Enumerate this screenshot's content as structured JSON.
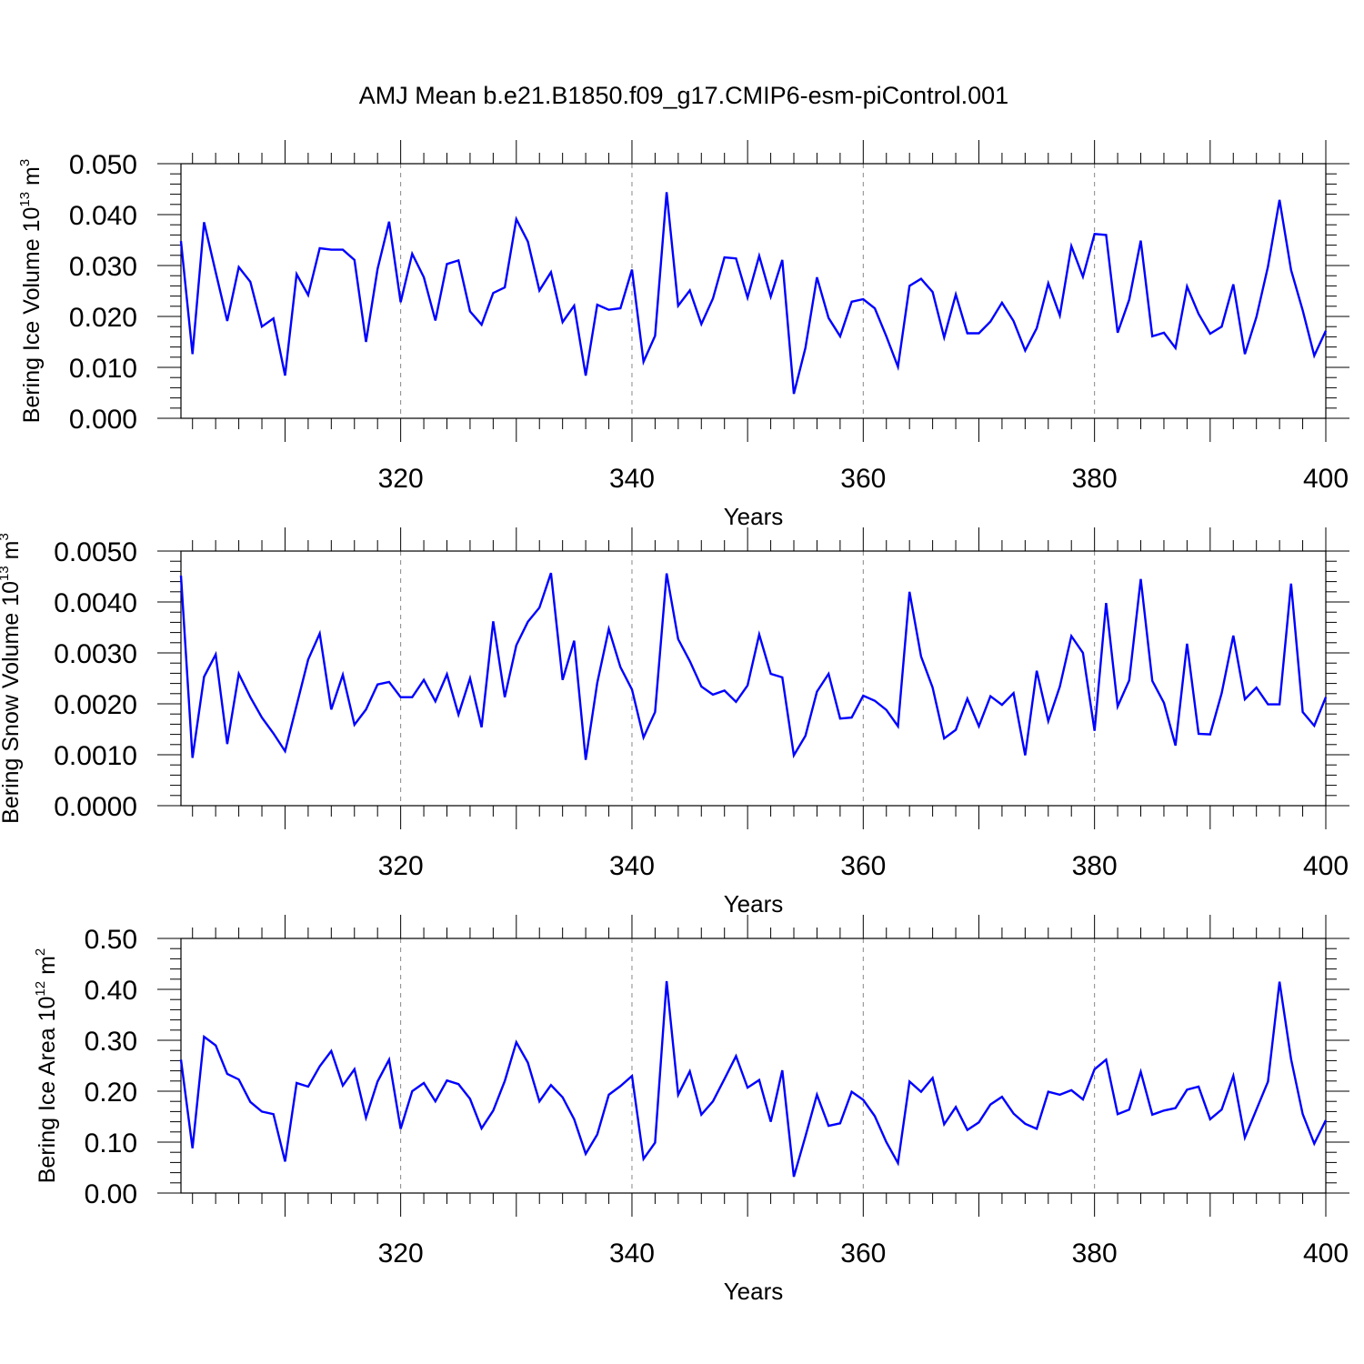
{
  "title": "AMJ Mean b.e21.B1850.f09_g17.CMIP6-esm-piControl.001",
  "chart_data": [
    {
      "type": "line",
      "xlabel": "Years",
      "ylabel": {
        "text": "Bering Ice Volume 10",
        "sup": "13",
        "unit": " m",
        "unit_sup": "3"
      },
      "xlim": [
        301,
        400
      ],
      "ylim": [
        0,
        0.05
      ],
      "xticks": [
        320,
        340,
        360,
        380,
        400
      ],
      "xtick_labels": [
        "320",
        "340",
        "360",
        "380",
        "400"
      ],
      "yticks": [
        0,
        0.01,
        0.02,
        0.03,
        0.04,
        0.05
      ],
      "ytick_labels": [
        "0.000",
        "0.010",
        "0.020",
        "0.030",
        "0.040",
        "0.050"
      ],
      "grid": "vertical dashed at major x ticks",
      "line_color": "#0000ff",
      "series": [
        {
          "x_start": 301,
          "values": [
            0.0348,
            0.0126,
            0.0385,
            0.0287,
            0.0191,
            0.0297,
            0.0268,
            0.018,
            0.0196,
            0.0084,
            0.0283,
            0.0242,
            0.0334,
            0.0331,
            0.0331,
            0.0311,
            0.015,
            0.0293,
            0.0386,
            0.0228,
            0.0323,
            0.0277,
            0.0192,
            0.0303,
            0.031,
            0.021,
            0.0184,
            0.0246,
            0.0257,
            0.0391,
            0.0347,
            0.0251,
            0.0287,
            0.0189,
            0.0221,
            0.0084,
            0.0223,
            0.0213,
            0.0216,
            0.0292,
            0.0111,
            0.0162,
            0.0444,
            0.0221,
            0.0251,
            0.0185,
            0.0235,
            0.0316,
            0.0314,
            0.0237,
            0.0319,
            0.0239,
            0.0311,
            0.0048,
            0.0138,
            0.0277,
            0.0197,
            0.0161,
            0.0229,
            0.0234,
            0.0216,
            0.0161,
            0.0101,
            0.026,
            0.0274,
            0.0248,
            0.0159,
            0.0243,
            0.0167,
            0.0167,
            0.019,
            0.0227,
            0.0191,
            0.0133,
            0.0177,
            0.0265,
            0.0202,
            0.0338,
            0.0278,
            0.0362,
            0.036,
            0.0168,
            0.0233,
            0.0349,
            0.0161,
            0.0168,
            0.0138,
            0.0259,
            0.0205,
            0.0166,
            0.018,
            0.0263,
            0.0126,
            0.0199,
            0.0298,
            0.0429,
            0.0291,
            0.0212,
            0.0123,
            0.0172
          ]
        }
      ]
    },
    {
      "type": "line",
      "xlabel": "Years",
      "ylabel": {
        "text": "Bering Snow Volume 10",
        "sup": "13",
        "unit": " m",
        "unit_sup": "3"
      },
      "xlim": [
        301,
        400
      ],
      "ylim": [
        0,
        0.005
      ],
      "xticks": [
        320,
        340,
        360,
        380,
        400
      ],
      "xtick_labels": [
        "320",
        "340",
        "360",
        "380",
        "400"
      ],
      "yticks": [
        0,
        0.001,
        0.002,
        0.003,
        0.004,
        0.005
      ],
      "ytick_labels": [
        "0.0000",
        "0.0010",
        "0.0020",
        "0.0030",
        "0.0040",
        "0.0050"
      ],
      "grid": "vertical dashed at major x ticks",
      "line_color": "#0000ff",
      "series": [
        {
          "x_start": 301,
          "values": [
            0.00452,
            0.00094,
            0.00253,
            0.00297,
            0.00121,
            0.00259,
            0.00213,
            0.00173,
            0.00142,
            0.00107,
            0.00197,
            0.00287,
            0.00338,
            0.00189,
            0.00257,
            0.00159,
            0.00189,
            0.00238,
            0.00243,
            0.00213,
            0.00213,
            0.00247,
            0.00205,
            0.00258,
            0.00179,
            0.0025,
            0.00154,
            0.00362,
            0.00213,
            0.00315,
            0.00361,
            0.00389,
            0.00457,
            0.00247,
            0.00324,
            0.0009,
            0.00241,
            0.00347,
            0.00272,
            0.00228,
            0.00134,
            0.00184,
            0.00456,
            0.00327,
            0.00284,
            0.00234,
            0.00218,
            0.00226,
            0.00204,
            0.00236,
            0.00336,
            0.00259,
            0.00252,
            0.00099,
            0.00137,
            0.00224,
            0.00259,
            0.00171,
            0.00173,
            0.00216,
            0.00206,
            0.00188,
            0.00156,
            0.0042,
            0.00293,
            0.00232,
            0.00132,
            0.00149,
            0.0021,
            0.00156,
            0.00215,
            0.00198,
            0.00221,
            0.00099,
            0.00265,
            0.00166,
            0.00234,
            0.00333,
            0.003,
            0.00147,
            0.00398,
            0.00195,
            0.00246,
            0.00445,
            0.00245,
            0.00202,
            0.00118,
            0.00318,
            0.00141,
            0.0014,
            0.00221,
            0.00334,
            0.00209,
            0.00232,
            0.00199,
            0.00199,
            0.00436,
            0.00184,
            0.00157,
            0.00213
          ]
        }
      ]
    },
    {
      "type": "line",
      "xlabel": "Years",
      "ylabel": {
        "text": "Bering Ice Area 10",
        "sup": "12",
        "unit": " m",
        "unit_sup": "2"
      },
      "xlim": [
        301,
        400
      ],
      "ylim": [
        0,
        0.5
      ],
      "xticks": [
        320,
        340,
        360,
        380,
        400
      ],
      "xtick_labels": [
        "320",
        "340",
        "360",
        "380",
        "400"
      ],
      "yticks": [
        0,
        0.1,
        0.2,
        0.3,
        0.4,
        0.5
      ],
      "ytick_labels": [
        "0.00",
        "0.10",
        "0.20",
        "0.30",
        "0.40",
        "0.50"
      ],
      "grid": "vertical dashed at major x ticks",
      "line_color": "#0000ff",
      "series": [
        {
          "x_start": 301,
          "values": [
            0.262,
            0.088,
            0.307,
            0.29,
            0.234,
            0.223,
            0.179,
            0.16,
            0.155,
            0.062,
            0.216,
            0.209,
            0.249,
            0.279,
            0.211,
            0.243,
            0.148,
            0.219,
            0.262,
            0.126,
            0.2,
            0.216,
            0.18,
            0.221,
            0.214,
            0.185,
            0.127,
            0.162,
            0.22,
            0.296,
            0.256,
            0.18,
            0.212,
            0.188,
            0.145,
            0.077,
            0.115,
            0.193,
            0.21,
            0.23,
            0.067,
            0.099,
            0.416,
            0.193,
            0.239,
            0.154,
            0.18,
            0.224,
            0.269,
            0.207,
            0.222,
            0.14,
            0.241,
            0.032,
            0.111,
            0.193,
            0.132,
            0.137,
            0.199,
            0.183,
            0.151,
            0.1,
            0.059,
            0.219,
            0.199,
            0.226,
            0.135,
            0.169,
            0.124,
            0.139,
            0.174,
            0.189,
            0.156,
            0.136,
            0.126,
            0.199,
            0.193,
            0.202,
            0.184,
            0.243,
            0.262,
            0.155,
            0.164,
            0.238,
            0.154,
            0.162,
            0.167,
            0.203,
            0.209,
            0.145,
            0.164,
            0.23,
            0.109,
            0.164,
            0.219,
            0.415,
            0.263,
            0.155,
            0.097,
            0.143
          ]
        }
      ]
    }
  ]
}
